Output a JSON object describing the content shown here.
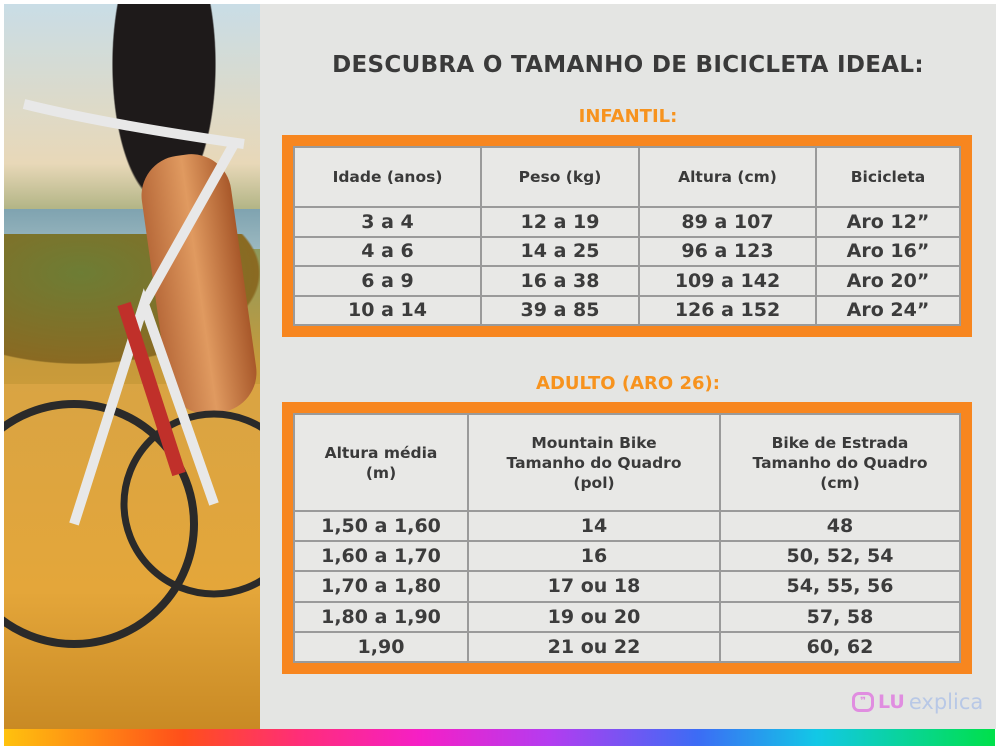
{
  "title": "DESCUBRA O TAMANHO DE BICICLETA IDEAL:",
  "infantil": {
    "heading": "INFANTIL:",
    "headers": [
      "Idade (anos)",
      "Peso (kg)",
      "Altura (cm)",
      "Bicicleta"
    ],
    "rows": [
      [
        "3 a 4",
        "12 a 19",
        "89 a 107",
        "Aro 12”"
      ],
      [
        "4 a 6",
        "14 a 25",
        "96 a 123",
        "Aro 16”"
      ],
      [
        "6 a 9",
        "16 a 38",
        "109 a 142",
        "Aro 20”"
      ],
      [
        "10 a 14",
        "39 a 85",
        "126 a 152",
        "Aro 24”"
      ]
    ]
  },
  "adulto": {
    "heading": "ADULTO (ARO 26):",
    "headers": [
      [
        "Altura média",
        "(m)"
      ],
      [
        "Mountain Bike",
        "Tamanho do Quadro",
        "(pol)"
      ],
      [
        "Bike de Estrada",
        "Tamanho do Quadro",
        "(cm)"
      ]
    ],
    "rows": [
      [
        "1,50 a 1,60",
        "14",
        "48"
      ],
      [
        "1,60 a 1,70",
        "16",
        "50, 52, 54"
      ],
      [
        "1,70 a 1,80",
        "17 ou 18",
        "54, 55, 56"
      ],
      [
        "1,80 a 1,90",
        "19 ou 20",
        "57, 58"
      ],
      [
        "1,90",
        "21 ou 22",
        "60, 62"
      ]
    ]
  },
  "logo": {
    "lu": "LU",
    "explica": "explica"
  },
  "colors": {
    "accent": "#f7861f",
    "panel": "#e4e5e3",
    "text": "#3a3a3a"
  }
}
